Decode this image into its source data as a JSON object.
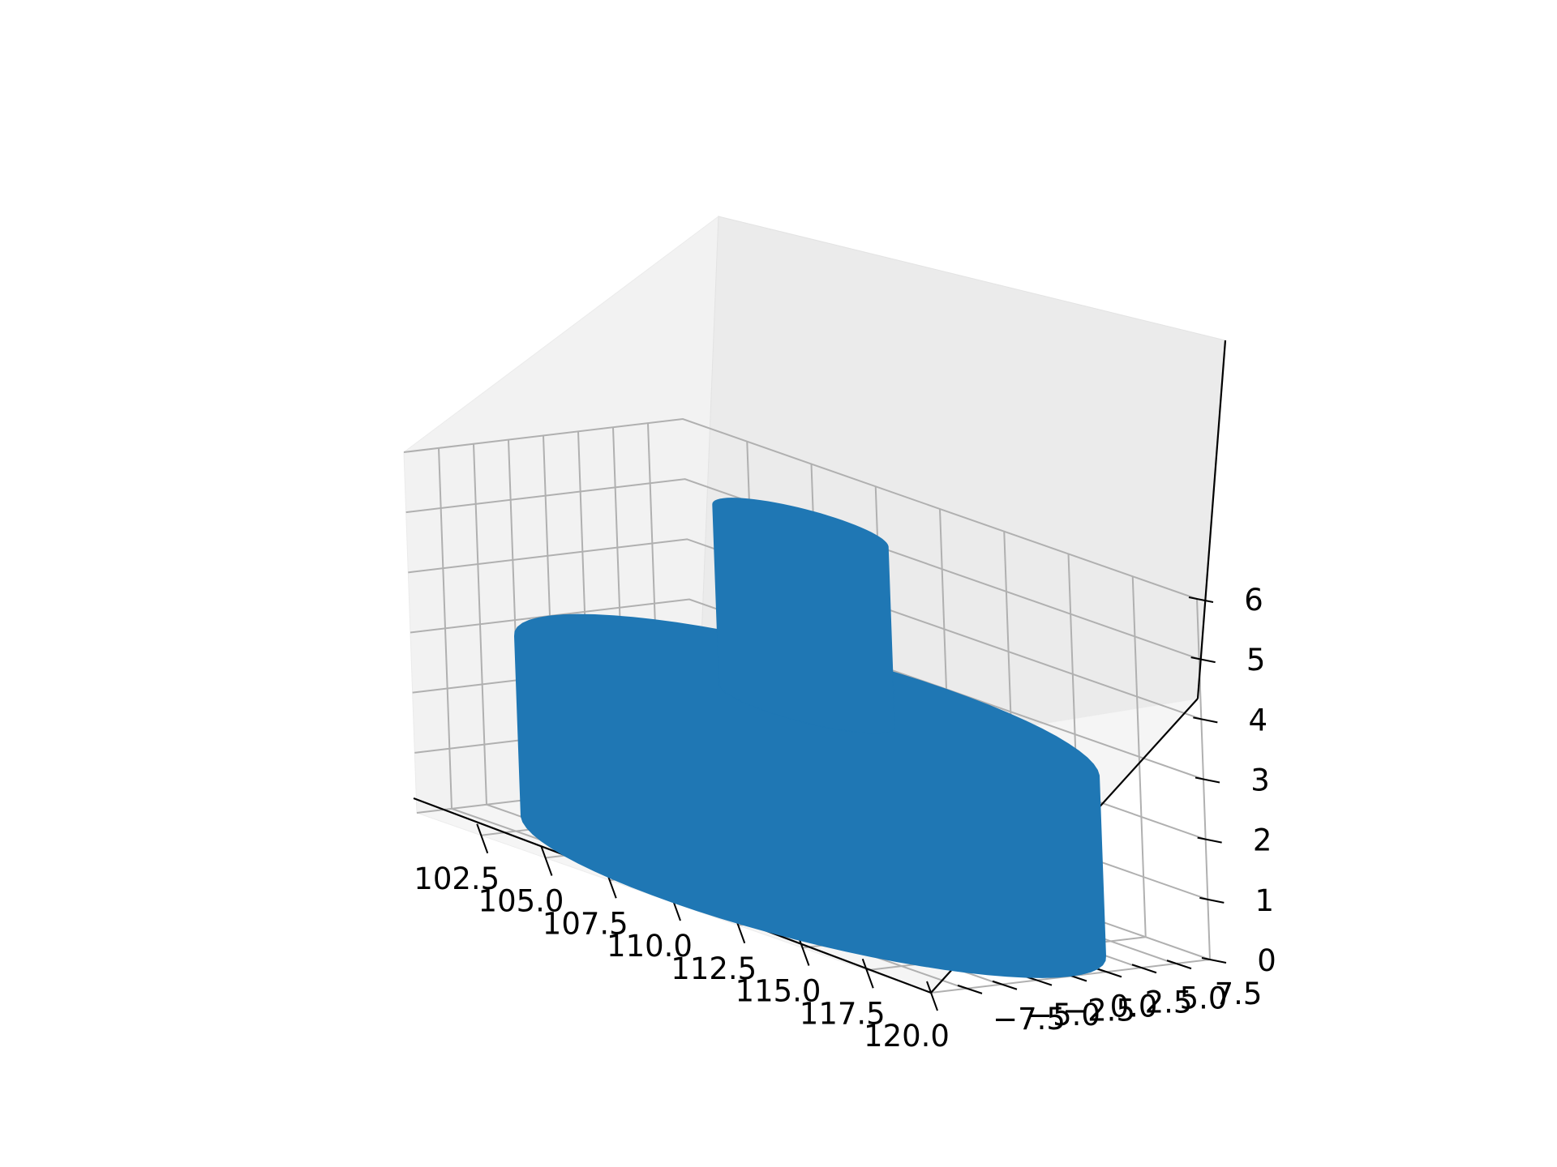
{
  "chart_data": {
    "type": "surface3d",
    "title": "",
    "xlabel": "",
    "ylabel": "",
    "zlabel": "",
    "surface_color": "#1f77b4",
    "grid": true,
    "x_axis": {
      "ticks": [
        102.5,
        105.0,
        107.5,
        110.0,
        112.5,
        115.0,
        117.5,
        120.0
      ],
      "tick_labels": [
        "102.5",
        "105.0",
        "107.5",
        "110.0",
        "112.5",
        "115.0",
        "117.5",
        "120.0"
      ]
    },
    "y_axis": {
      "ticks": [
        -7.5,
        -5.0,
        -2.5,
        0.0,
        2.5,
        5.0,
        7.5
      ],
      "tick_labels": [
        "−7.5",
        "−5.0",
        "−2.5",
        "0.0",
        "2.5",
        "5.0",
        "7.5"
      ]
    },
    "z_axis": {
      "ticks": [
        0,
        1,
        2,
        3,
        4,
        5,
        6
      ],
      "tick_labels": [
        "0",
        "1",
        "2",
        "3",
        "4",
        "5",
        "6"
      ]
    },
    "shape": {
      "base_cylinder": {
        "center_x": 110.0,
        "center_y": 0.0,
        "radius": 10.0,
        "z_min": 0,
        "z_max": 3
      },
      "top_column": {
        "center_x": 110.0,
        "center_y": 0.0,
        "radius": 3.0,
        "z_min": 3,
        "z_max": 6
      }
    }
  }
}
